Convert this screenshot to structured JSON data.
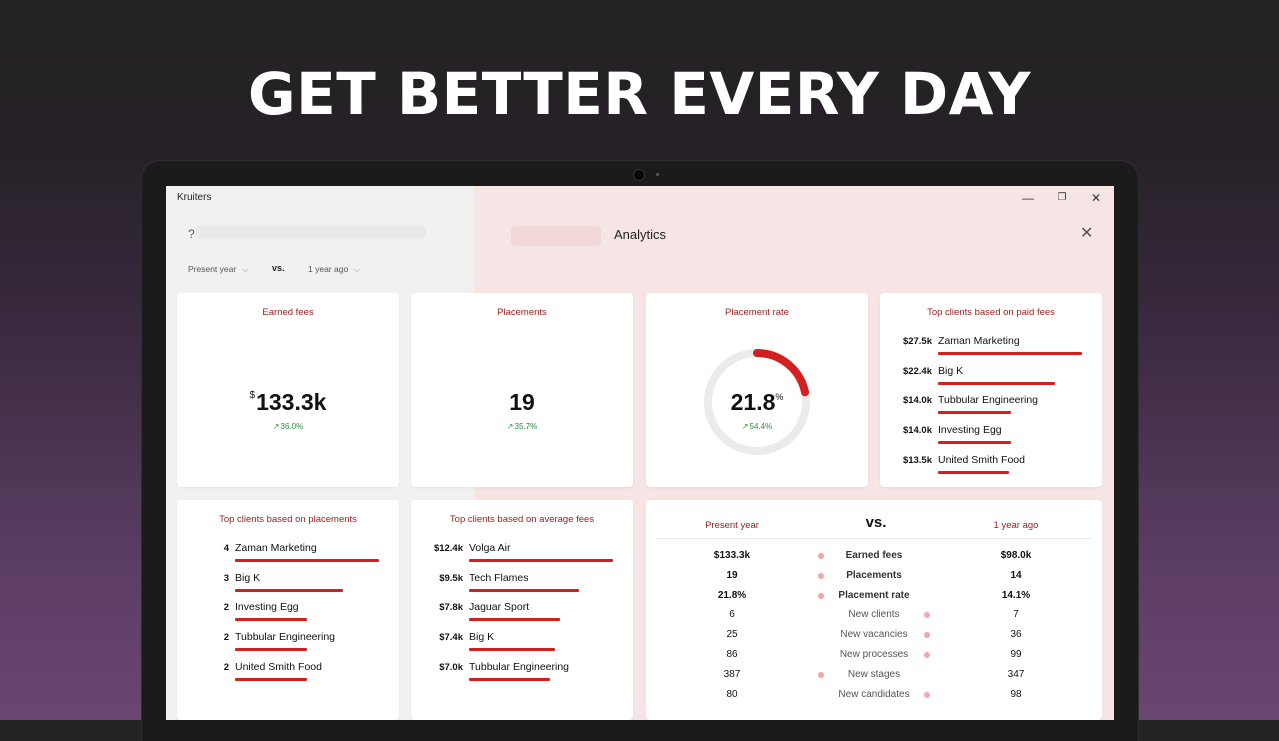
{
  "hero": {
    "title": "GET BETTER EVERY DAY"
  },
  "window": {
    "title": "Kruiters",
    "minimize": "—",
    "restore": "❐",
    "close": "✕"
  },
  "dialog": {
    "title": "Analytics",
    "help": "?",
    "close": "✕",
    "filter_current": "Present year",
    "filter_vs": "vs.",
    "filter_compare": "1 year ago",
    "chevron": "⌵"
  },
  "kpis": {
    "earned_fees": {
      "title": "Earned fees",
      "currency": "$",
      "value": "133.3k",
      "change": "36.0%"
    },
    "placements": {
      "title": "Placements",
      "value": "19",
      "change": "35.7%"
    },
    "placement_rate": {
      "title": "Placement rate",
      "value": "21.8",
      "unit": "%",
      "change": "54.4%",
      "fraction": 0.218
    }
  },
  "accent_color": "#d21f1f",
  "positive_color": "#2e8b3e",
  "top_paid": {
    "title": "Top clients based on paid fees",
    "items": [
      {
        "value": "$27.5k",
        "name": "Zaman Marketing",
        "share": 1.0
      },
      {
        "value": "$22.4k",
        "name": "Big K",
        "share": 0.815
      },
      {
        "value": "$14.0k",
        "name": "Tubbular Engineering",
        "share": 0.509
      },
      {
        "value": "$14.0k",
        "name": "Investing Egg",
        "share": 0.509
      },
      {
        "value": "$13.5k",
        "name": "United Smith Food",
        "share": 0.491
      }
    ]
  },
  "top_placements": {
    "title": "Top clients based on placements",
    "items": [
      {
        "value": "4",
        "name": "Zaman Marketing",
        "share": 1.0
      },
      {
        "value": "3",
        "name": "Big K",
        "share": 0.75
      },
      {
        "value": "2",
        "name": "Investing Egg",
        "share": 0.5
      },
      {
        "value": "2",
        "name": "Tubbular Engineering",
        "share": 0.5
      },
      {
        "value": "2",
        "name": "United Smith Food",
        "share": 0.5
      }
    ]
  },
  "top_avg_fees": {
    "title": "Top clients based on average fees",
    "items": [
      {
        "value": "$12.4k",
        "name": "Volga Air",
        "share": 1.0
      },
      {
        "value": "$9.5k",
        "name": "Tech Flames",
        "share": 0.766
      },
      {
        "value": "$7.8k",
        "name": "Jaguar Sport",
        "share": 0.629
      },
      {
        "value": "$7.4k",
        "name": "Big K",
        "share": 0.597
      },
      {
        "value": "$7.0k",
        "name": "Tubbular Engineering",
        "share": 0.565
      }
    ]
  },
  "comparison": {
    "left_head": "Present year",
    "vs": "vs.",
    "right_head": "1 year ago",
    "rows": [
      {
        "left": "$133.3k",
        "metric": "Earned fees",
        "right": "$98.0k",
        "winner": "left",
        "bold": true
      },
      {
        "left": "19",
        "metric": "Placements",
        "right": "14",
        "winner": "left",
        "bold": true
      },
      {
        "left": "21.8%",
        "metric": "Placement rate",
        "right": "14.1%",
        "winner": "left",
        "bold": true
      },
      {
        "left": "6",
        "metric": "New clients",
        "right": "7",
        "winner": "right",
        "bold": false
      },
      {
        "left": "25",
        "metric": "New vacancies",
        "right": "36",
        "winner": "right",
        "bold": false
      },
      {
        "left": "86",
        "metric": "New processes",
        "right": "99",
        "winner": "right",
        "bold": false
      },
      {
        "left": "387",
        "metric": "New stages",
        "right": "347",
        "winner": "left",
        "bold": false
      },
      {
        "left": "80",
        "metric": "New candidates",
        "right": "98",
        "winner": "right",
        "bold": false
      }
    ]
  }
}
